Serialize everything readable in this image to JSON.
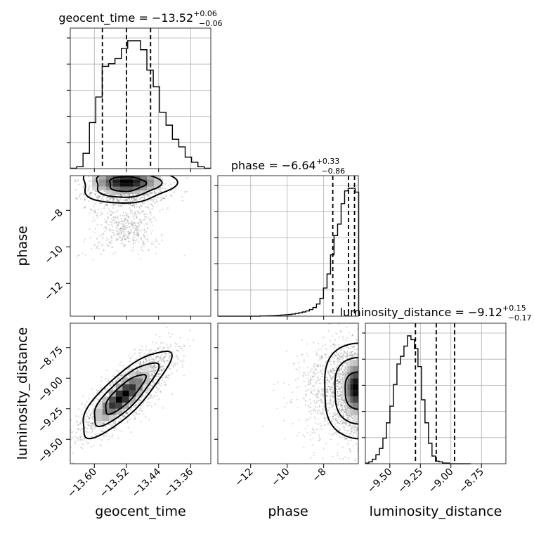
{
  "chart_data": {
    "type": "corner",
    "parameters": [
      "geocent_time",
      "phase",
      "luminosity_distance"
    ],
    "titles": [
      {
        "param": "geocent_time",
        "prefix": "geocent_time = ",
        "median": "−13.52",
        "plus": "+0.06",
        "minus": "−0.06"
      },
      {
        "param": "phase",
        "prefix": "phase = ",
        "median": "−6.64",
        "plus": "+0.33",
        "minus": "−0.86"
      },
      {
        "param": "luminosity_distance",
        "prefix": "luminosity_distance = ",
        "median": "−9.12",
        "plus": "+0.15",
        "minus": "−0.17"
      }
    ],
    "axis_labels": {
      "x": [
        "geocent_time",
        "phase",
        "luminosity_distance"
      ],
      "y": [
        "phase",
        "luminosity_distance"
      ]
    },
    "ranges": {
      "geocent_time": [
        -13.66,
        -13.31
      ],
      "phase": [
        -13.8,
        -6.1
      ],
      "luminosity_distance": [
        -9.7,
        -8.55
      ]
    },
    "ticks": {
      "geocent_time": [
        -13.6,
        -13.52,
        -13.44,
        -13.36
      ],
      "phase": [
        -12,
        -10,
        -8
      ],
      "luminosity_distance": [
        -9.5,
        -9.25,
        -9.0,
        -8.75
      ]
    },
    "tick_labels": {
      "geocent_time": [
        "−13.60",
        "−13.52",
        "−13.44",
        "−13.36"
      ],
      "phase": [
        "−12",
        "−10",
        "−8"
      ],
      "luminosity_distance": [
        "−9.50",
        "−9.25",
        "−9.00",
        "−8.75"
      ]
    },
    "quantiles": {
      "geocent_time": [
        -13.58,
        -13.52,
        -13.46
      ],
      "phase": [
        -7.5,
        -6.64,
        -6.31
      ],
      "luminosity_distance": [
        -9.29,
        -9.12,
        -8.97
      ]
    },
    "histograms": {
      "geocent_time": {
        "edges_start": -13.66,
        "bin_width": 0.0159,
        "counts": [
          0.3,
          1.5,
          12,
          36,
          56,
          80,
          82,
          86,
          94,
          100,
          100,
          93,
          77,
          64,
          44,
          34,
          23,
          17,
          9,
          5,
          1.5,
          0.3
        ]
      },
      "phase": {
        "edges_start": -13.8,
        "bin_width": 0.193,
        "counts": [
          0,
          0,
          0,
          0,
          0,
          0,
          0,
          0,
          0,
          0,
          0,
          0,
          0.2,
          0.2,
          0.3,
          0.4,
          0.5,
          0.7,
          0.9,
          1.1,
          1.3,
          1.7,
          2.1,
          2.7,
          3.3,
          4.1,
          5.2,
          6.8,
          9.5,
          14,
          22,
          33,
          48,
          63,
          72,
          88,
          98,
          100,
          100,
          97
        ]
      },
      "luminosity_distance": {
        "edges_start": -9.7,
        "bin_width": 0.0287,
        "counts": [
          0.5,
          1.5,
          3.5,
          7,
          12,
          20,
          32,
          45,
          62,
          78,
          84,
          92,
          100,
          97,
          90,
          76,
          50,
          32,
          16,
          6,
          2,
          1.5,
          0.5,
          0.5,
          0,
          0,
          0,
          0,
          0,
          0
        ]
      }
    },
    "grid": true
  }
}
